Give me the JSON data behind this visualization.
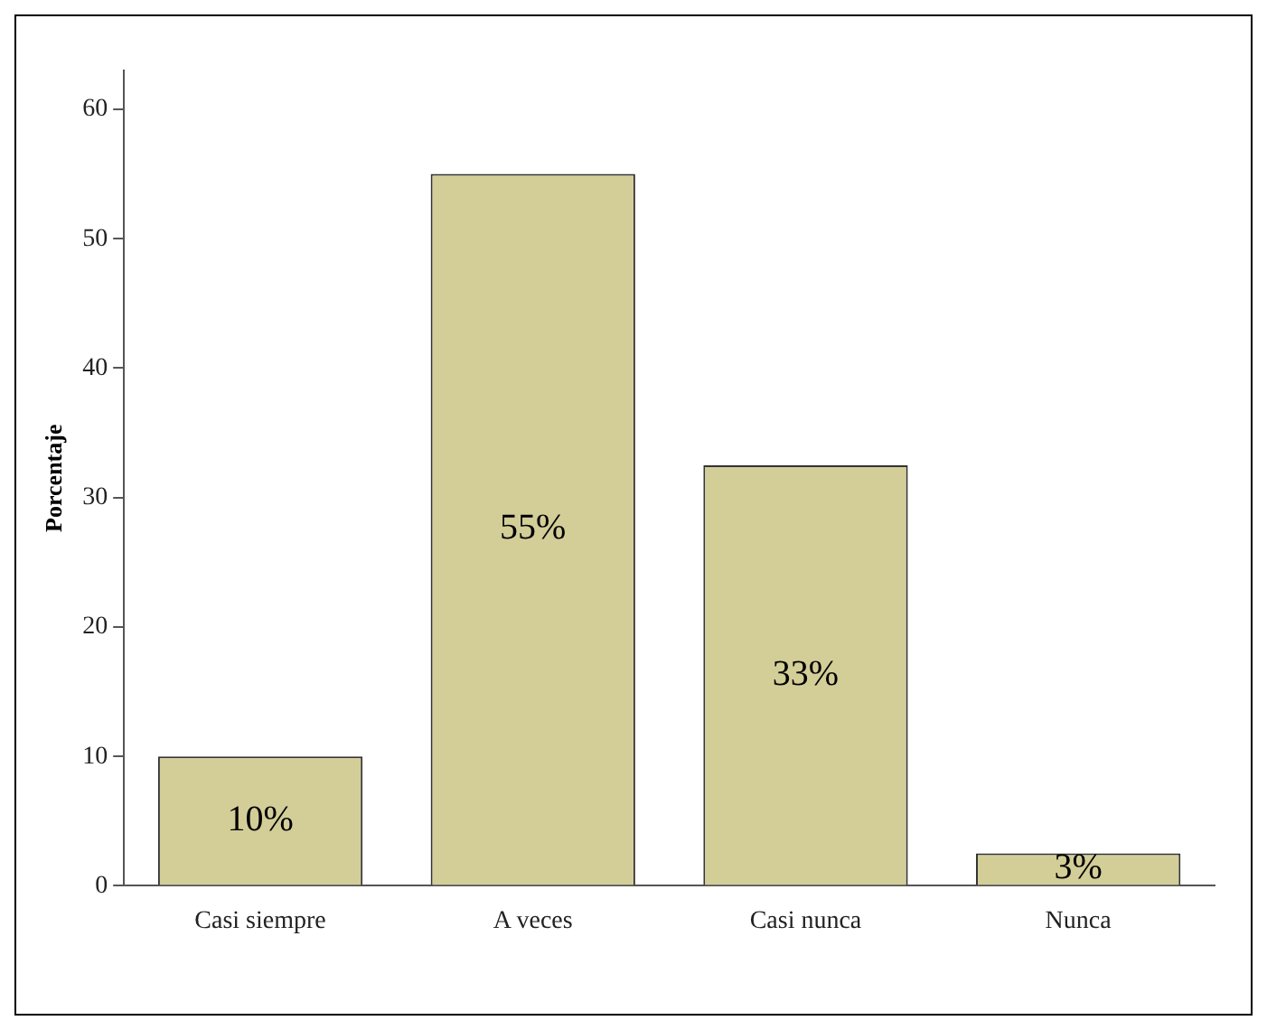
{
  "chart_data": {
    "type": "bar",
    "ylabel": "Porcentaje",
    "categories": [
      "Casi siempre",
      "A veces",
      "Casi nunca",
      "Nunca"
    ],
    "values": [
      10,
      55,
      32.5,
      2.5
    ],
    "value_labels": [
      "10%",
      "55%",
      "33%",
      "3%"
    ],
    "color": "#d3cd98",
    "ylim": [
      0,
      63
    ],
    "yticks": [
      0,
      10,
      20,
      30,
      40,
      50,
      60
    ],
    "grid": false,
    "legend": false
  }
}
